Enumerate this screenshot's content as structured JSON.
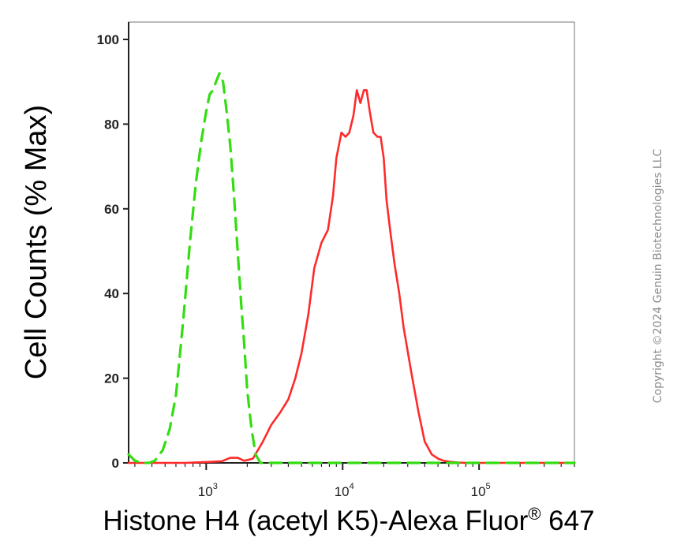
{
  "chart_data": {
    "type": "line",
    "title": "",
    "xlabel_main": "Histone H4 (acetyl K5)-Alexa Fluor",
    "xlabel_reg": "®",
    "xlabel_tail": " 647",
    "ylabel": "Cell Counts (% Max)",
    "x_scale": "log",
    "xlim": [
      270,
      500000
    ],
    "ylim": [
      0,
      100
    ],
    "y_ticks": [
      0,
      20,
      40,
      60,
      80,
      100
    ],
    "x_ticks": [
      {
        "value": 1000,
        "base": "10",
        "exp": "3"
      },
      {
        "value": 10000,
        "base": "10",
        "exp": "4"
      },
      {
        "value": 100000,
        "base": "10",
        "exp": "5"
      }
    ],
    "grid": false,
    "series": [
      {
        "color": "#ff2a2a",
        "style": "solid",
        "x": [
          270,
          400,
          700,
          1000,
          1300,
          1500,
          1700,
          1900,
          2200,
          2600,
          3000,
          3500,
          4000,
          4500,
          5000,
          5600,
          6200,
          7000,
          7800,
          8500,
          9000,
          9800,
          10500,
          11200,
          12000,
          12700,
          13500,
          14300,
          15000,
          15800,
          16800,
          18000,
          19000,
          20000,
          21000,
          22500,
          24000,
          26000,
          28000,
          32000,
          36000,
          40000,
          45000,
          50000,
          55000,
          60000,
          70000,
          80000,
          100000,
          150000,
          500000
        ],
        "y": [
          0,
          0,
          0,
          0.2,
          0.4,
          1.2,
          1.2,
          0.5,
          1,
          5,
          9,
          12,
          15,
          20,
          26,
          35,
          46,
          52,
          55,
          63,
          72,
          78,
          77,
          78,
          82,
          88,
          85,
          88,
          88,
          83,
          78,
          77,
          77,
          72,
          62,
          54,
          47,
          40,
          32,
          21,
          12,
          5,
          2,
          1,
          0.5,
          0.3,
          0.1,
          0,
          0,
          0,
          0
        ]
      },
      {
        "color": "#33dd11",
        "style": "dashed",
        "x": [
          270,
          300,
          340,
          380,
          420,
          480,
          540,
          600,
          680,
          760,
          840,
          920,
          1000,
          1060,
          1120,
          1180,
          1250,
          1330,
          1400,
          1500,
          1600,
          1700,
          1800,
          1900,
          2000,
          2150,
          2300,
          2500,
          3000,
          5000,
          500000
        ],
        "y": [
          2,
          0.5,
          0,
          0,
          0.5,
          3,
          8,
          16,
          34,
          52,
          66,
          76,
          83,
          87,
          88,
          90,
          92,
          90,
          84,
          75,
          63,
          50,
          38,
          28,
          17,
          8,
          2,
          0,
          0,
          0,
          0
        ]
      }
    ]
  },
  "copyright": "Copyright ©2024 Genuin Biotechnologies LLC"
}
